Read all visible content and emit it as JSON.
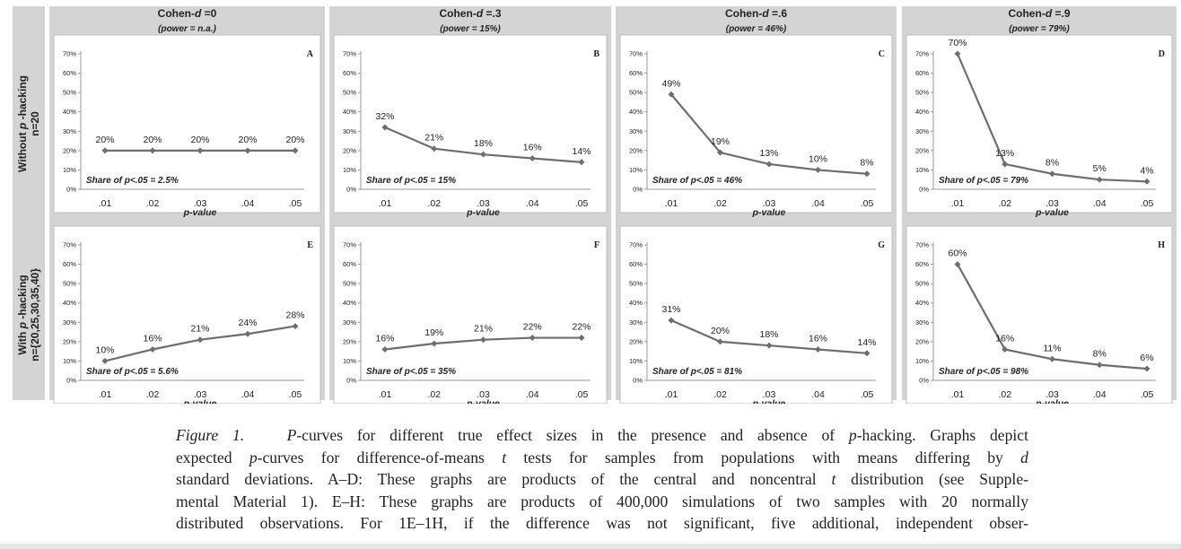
{
  "columns": [
    {
      "title_prefix": "Cohen-",
      "title_d": "d",
      "title_suffix": " =0",
      "power": "(power = n.a.)"
    },
    {
      "title_prefix": "Cohen-",
      "title_d": "d",
      "title_suffix": " =.3",
      "power": "(power = 15%)"
    },
    {
      "title_prefix": "Cohen-",
      "title_d": "d",
      "title_suffix": " =.6",
      "power": "(power = 46%)"
    },
    {
      "title_prefix": "Cohen-",
      "title_d": "d",
      "title_suffix": " =.9",
      "power": "(power = 79%)"
    }
  ],
  "rows": [
    {
      "line1_a": "Without ",
      "line1_p": "p",
      "line1_b": " -hacking",
      "line2": "n=20"
    },
    {
      "line1_a": "With ",
      "line1_p": "p",
      "line1_b": " -hacking",
      "line2": "n={20,25,30,35,40}"
    }
  ],
  "chart_data": [
    {
      "type": "line",
      "panel": "A",
      "categories": [
        ".01",
        ".02",
        ".03",
        ".04",
        ".05"
      ],
      "values": [
        20,
        20,
        20,
        20,
        20
      ],
      "data_labels": [
        "20%",
        "20%",
        "20%",
        "20%",
        "20%"
      ],
      "yticks": [
        "0%",
        "10%",
        "20%",
        "30%",
        "40%",
        "50%",
        "60%",
        "70%"
      ],
      "ylim": [
        0,
        70
      ],
      "xlabel": "p-value",
      "share": "Share of p<.05 = 2.5%"
    },
    {
      "type": "line",
      "panel": "B",
      "categories": [
        ".01",
        ".02",
        ".03",
        ".04",
        ".05"
      ],
      "values": [
        32,
        21,
        18,
        16,
        14
      ],
      "data_labels": [
        "32%",
        "21%",
        "18%",
        "16%",
        "14%"
      ],
      "yticks": [
        "0%",
        "10%",
        "20%",
        "30%",
        "40%",
        "50%",
        "60%",
        "70%"
      ],
      "ylim": [
        0,
        70
      ],
      "xlabel": "p-value",
      "share": "Share of p<.05 = 15%"
    },
    {
      "type": "line",
      "panel": "C",
      "categories": [
        ".01",
        ".02",
        ".03",
        ".04",
        ".05"
      ],
      "values": [
        49,
        19,
        13,
        10,
        8
      ],
      "data_labels": [
        "49%",
        "19%",
        "13%",
        "10%",
        "8%"
      ],
      "yticks": [
        "0%",
        "10%",
        "20%",
        "30%",
        "40%",
        "50%",
        "60%",
        "70%"
      ],
      "ylim": [
        0,
        70
      ],
      "xlabel": "p-value",
      "share": "Share of p<.05 = 46%"
    },
    {
      "type": "line",
      "panel": "D",
      "categories": [
        ".01",
        ".02",
        ".03",
        ".04",
        ".05"
      ],
      "values": [
        70,
        13,
        8,
        5,
        4
      ],
      "data_labels": [
        "70%",
        "13%",
        "8%",
        "5%",
        "4%"
      ],
      "yticks": [
        "0%",
        "10%",
        "20%",
        "30%",
        "40%",
        "50%",
        "60%",
        "70%"
      ],
      "ylim": [
        0,
        70
      ],
      "xlabel": "p-value",
      "share": "Share of p<.05 = 79%"
    },
    {
      "type": "line",
      "panel": "E",
      "categories": [
        ".01",
        ".02",
        ".03",
        ".04",
        ".05"
      ],
      "values": [
        10,
        16,
        21,
        24,
        28
      ],
      "data_labels": [
        "10%",
        "16%",
        "21%",
        "24%",
        "28%"
      ],
      "yticks": [
        "0%",
        "10%",
        "20%",
        "30%",
        "40%",
        "50%",
        "60%",
        "70%"
      ],
      "ylim": [
        0,
        70
      ],
      "xlabel": "p-value",
      "share": "Share of p<.05 = 5.6%"
    },
    {
      "type": "line",
      "panel": "F",
      "categories": [
        ".01",
        ".02",
        ".03",
        ".04",
        ".05"
      ],
      "values": [
        16,
        19,
        21,
        22,
        22
      ],
      "data_labels": [
        "16%",
        "19%",
        "21%",
        "22%",
        "22%"
      ],
      "yticks": [
        "0%",
        "10%",
        "20%",
        "30%",
        "40%",
        "50%",
        "60%",
        "70%"
      ],
      "ylim": [
        0,
        70
      ],
      "xlabel": "p-value",
      "share": "Share of p<.05 = 35%"
    },
    {
      "type": "line",
      "panel": "G",
      "categories": [
        ".01",
        ".02",
        ".03",
        ".04",
        ".05"
      ],
      "values": [
        31,
        20,
        18,
        16,
        14
      ],
      "data_labels": [
        "31%",
        "20%",
        "18%",
        "16%",
        "14%"
      ],
      "yticks": [
        "0%",
        "10%",
        "20%",
        "30%",
        "40%",
        "50%",
        "60%",
        "70%"
      ],
      "ylim": [
        0,
        70
      ],
      "xlabel": "p-value",
      "share": "Share of p<.05 = 81%"
    },
    {
      "type": "line",
      "panel": "H",
      "categories": [
        ".01",
        ".02",
        ".03",
        ".04",
        ".05"
      ],
      "values": [
        60,
        16,
        11,
        8,
        6
      ],
      "data_labels": [
        "60%",
        "16%",
        "11%",
        "8%",
        "6%"
      ],
      "yticks": [
        "0%",
        "10%",
        "20%",
        "30%",
        "40%",
        "50%",
        "60%",
        "70%"
      ],
      "ylim": [
        0,
        70
      ],
      "xlabel": "p-value",
      "share": "Share of p<.05 = 98%"
    }
  ],
  "caption": {
    "lines": [
      [
        {
          "t": "Figure 1.",
          "i": true
        },
        {
          "t": "   "
        },
        {
          "t": "P",
          "i": true
        },
        {
          "t": "-curves for different true effect sizes in the presence and absence of "
        },
        {
          "t": "p",
          "i": true
        },
        {
          "t": "-hacking. Graphs depict"
        }
      ],
      [
        {
          "t": "expected "
        },
        {
          "t": "p",
          "i": true
        },
        {
          "t": "-curves for difference-of-means "
        },
        {
          "t": "t",
          "i": true
        },
        {
          "t": " tests for samples from populations with means differing by "
        },
        {
          "t": "d",
          "i": true
        }
      ],
      [
        {
          "t": "standard deviations. A–D: These graphs are products of the central and noncentral "
        },
        {
          "t": "t",
          "i": true
        },
        {
          "t": " distribution (see Supple-"
        }
      ],
      [
        {
          "t": "mental Material 1). E–H: These graphs are products of 400,000 simulations of two samples with 20 normally"
        }
      ],
      [
        {
          "t": "distributed observations. For 1E–1H, if the difference was not significant, five additional, independent obser-"
        }
      ]
    ]
  },
  "colors": {
    "header_bg": "#d4d4d4",
    "panel_bg": "#ffffff",
    "line": "#6e6e6e",
    "text": "#222222"
  }
}
